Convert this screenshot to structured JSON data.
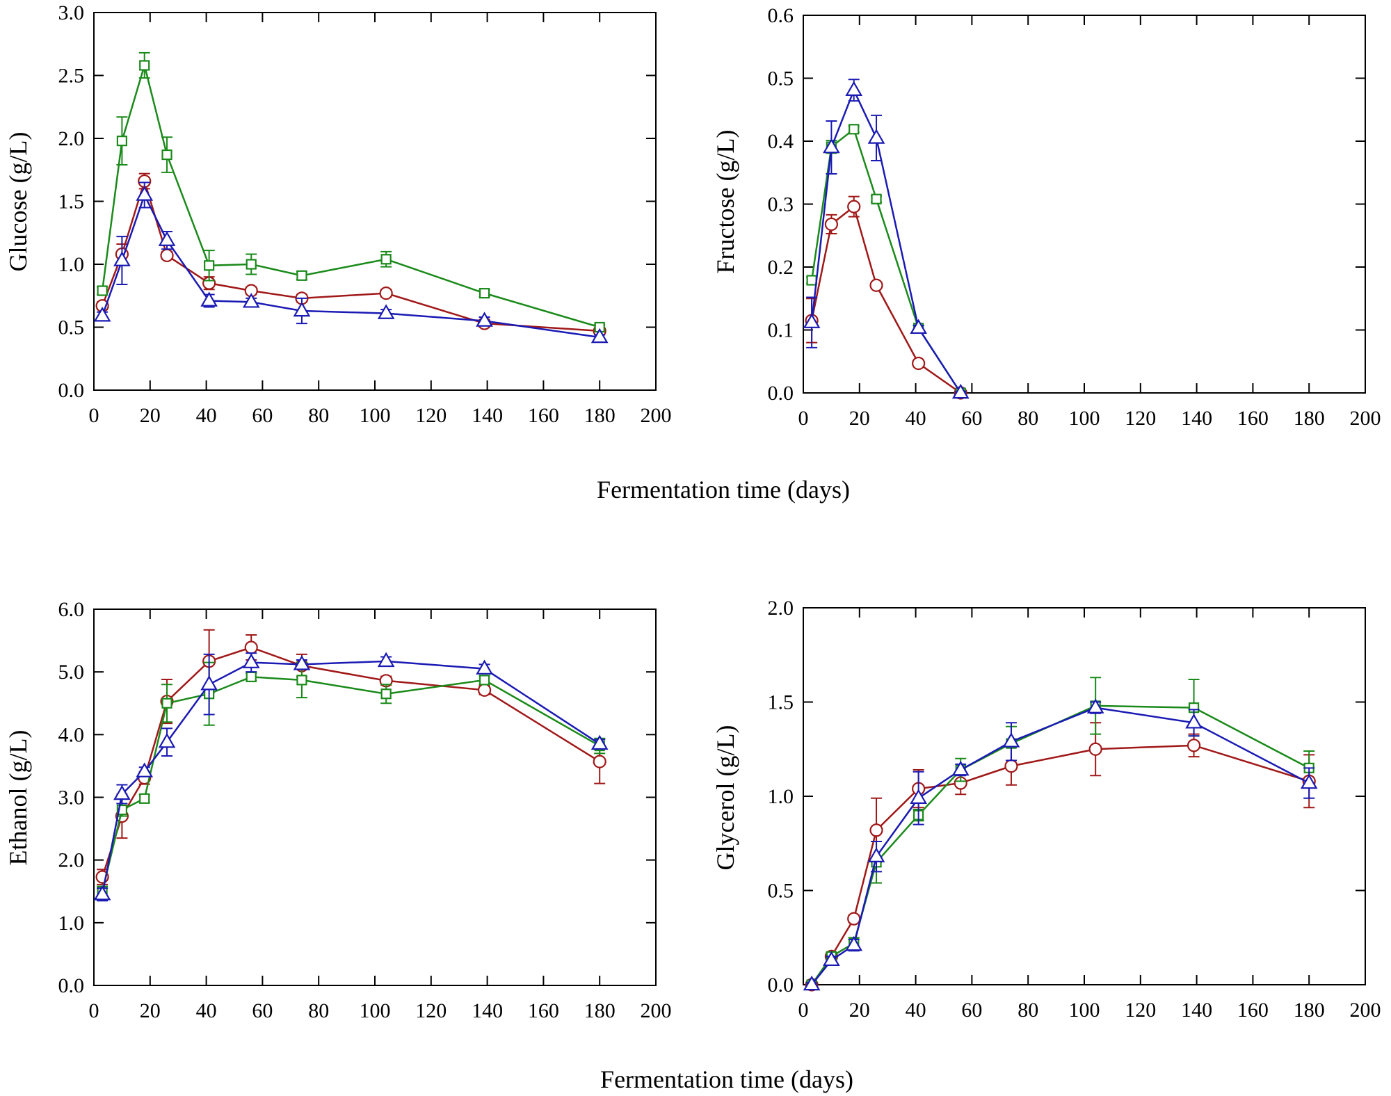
{
  "figure": {
    "shared_xlabel": "Fermentation time (days)"
  },
  "series_styles": [
    {
      "marker": "circle",
      "color": "#a01818"
    },
    {
      "marker": "square",
      "color": "#1a8a1a"
    },
    {
      "marker": "triangle",
      "color": "#1a1ab4"
    }
  ],
  "chart_data": [
    {
      "type": "line",
      "ylabel": "Glucose  (g/L)",
      "xlabel": "Fermentation time (days)",
      "xlim": [
        0,
        200
      ],
      "ylim": [
        0,
        3.0
      ],
      "xticks": [
        0,
        20,
        40,
        60,
        80,
        100,
        120,
        140,
        160,
        180,
        200
      ],
      "yticks": [
        0,
        0.5,
        1.0,
        1.5,
        2.0,
        2.5,
        3.0
      ],
      "xtick_labels": [
        "0",
        "20",
        "40",
        "60",
        "80",
        "100",
        "120",
        "140",
        "160",
        "180",
        "200"
      ],
      "ytick_labels": [
        "0.0",
        "0.5",
        "1.0",
        "1.5",
        "2.0",
        "2.5",
        "3.0"
      ],
      "series": [
        {
          "name": "circle",
          "x": [
            3,
            10,
            18,
            26,
            41,
            56,
            74,
            104,
            139,
            180
          ],
          "values": [
            0.67,
            1.08,
            1.66,
            1.07,
            0.85,
            0.79,
            0.73,
            0.77,
            0.53,
            0.47
          ],
          "err": [
            0.03,
            0.08,
            0.06,
            0.03,
            0.05,
            0.03,
            0.03,
            0.03,
            0.03,
            0.02
          ]
        },
        {
          "name": "square",
          "x": [
            3,
            10,
            18,
            26,
            41,
            56,
            74,
            104,
            139,
            180
          ],
          "values": [
            0.79,
            1.98,
            2.58,
            1.87,
            0.99,
            1.0,
            0.91,
            1.04,
            0.77,
            0.5
          ],
          "err": [
            0.03,
            0.19,
            0.1,
            0.14,
            0.12,
            0.08,
            0.03,
            0.06,
            0.03,
            0.02
          ]
        },
        {
          "name": "triangle",
          "x": [
            3,
            10,
            18,
            26,
            41,
            56,
            74,
            104,
            139,
            180
          ],
          "values": [
            0.59,
            1.03,
            1.55,
            1.19,
            0.71,
            0.7,
            0.63,
            0.61,
            0.55,
            0.42
          ],
          "err": [
            0.03,
            0.19,
            0.1,
            0.07,
            0.05,
            0.03,
            0.1,
            0.03,
            0.03,
            0.02
          ]
        }
      ]
    },
    {
      "type": "line",
      "ylabel": "Fructose  (g/L)",
      "xlabel": "Fermentation time (days)",
      "xlim": [
        0,
        200
      ],
      "ylim": [
        0,
        0.6
      ],
      "xticks": [
        0,
        20,
        40,
        60,
        80,
        100,
        120,
        140,
        160,
        180,
        200
      ],
      "yticks": [
        0,
        0.1,
        0.2,
        0.3,
        0.4,
        0.5,
        0.6
      ],
      "xtick_labels": [
        "0",
        "20",
        "40",
        "60",
        "80",
        "100",
        "120",
        "140",
        "160",
        "180",
        "200"
      ],
      "ytick_labels": [
        "0.0",
        "0.1",
        "0.2",
        "0.3",
        "0.4",
        "0.5",
        "0.6"
      ],
      "series": [
        {
          "name": "circle",
          "x": [
            3,
            10,
            18,
            26,
            41,
            56
          ],
          "values": [
            0.115,
            0.268,
            0.296,
            0.171,
            0.047,
            0.0
          ],
          "err": [
            0.035,
            0.015,
            0.016,
            0.005,
            0.003,
            0.002
          ]
        },
        {
          "name": "square",
          "x": [
            3,
            10,
            18,
            26,
            41,
            56
          ],
          "values": [
            0.179,
            0.391,
            0.419,
            0.308,
            0.103,
            0.0
          ],
          "err": [
            0.005,
            0.01,
            0.005,
            0.005,
            0.004,
            0.002
          ]
        },
        {
          "name": "triangle",
          "x": [
            3,
            10,
            18,
            26,
            41,
            56
          ],
          "values": [
            0.112,
            0.39,
            0.481,
            0.405,
            0.103,
            0.0
          ],
          "err": [
            0.04,
            0.042,
            0.017,
            0.036,
            0.004,
            0.002
          ]
        }
      ]
    },
    {
      "type": "line",
      "ylabel": "Ethanol (g/L)",
      "xlabel": "Fermentation time (days)",
      "xlim": [
        0,
        200
      ],
      "ylim": [
        0,
        6.0
      ],
      "xticks": [
        0,
        20,
        40,
        60,
        80,
        100,
        120,
        140,
        160,
        180,
        200
      ],
      "yticks": [
        0,
        1.0,
        2.0,
        3.0,
        4.0,
        5.0,
        6.0
      ],
      "xtick_labels": [
        "0",
        "20",
        "40",
        "60",
        "80",
        "100",
        "120",
        "140",
        "160",
        "180",
        "200"
      ],
      "ytick_labels": [
        "0.0",
        "1.0",
        "2.0",
        "3.0",
        "4.0",
        "5.0",
        "6.0"
      ],
      "series": [
        {
          "name": "circle",
          "x": [
            3,
            10,
            18,
            26,
            41,
            56,
            74,
            104,
            139,
            180
          ],
          "values": [
            1.73,
            2.7,
            3.31,
            4.53,
            5.17,
            5.39,
            5.1,
            4.86,
            4.71,
            3.57
          ],
          "err": [
            0.12,
            0.35,
            0.1,
            0.35,
            0.5,
            0.2,
            0.18,
            0.07,
            0.07,
            0.35
          ]
        },
        {
          "name": "square",
          "x": [
            3,
            10,
            18,
            26,
            41,
            56,
            74,
            104,
            139,
            180
          ],
          "values": [
            1.5,
            2.8,
            2.98,
            4.5,
            4.65,
            4.92,
            4.87,
            4.65,
            4.87,
            3.82
          ],
          "err": [
            0.08,
            0.1,
            0.06,
            0.3,
            0.5,
            0.06,
            0.28,
            0.15,
            0.07,
            0.12
          ]
        },
        {
          "name": "triangle",
          "x": [
            3,
            10,
            18,
            26,
            41,
            56,
            74,
            104,
            139,
            180
          ],
          "values": [
            1.45,
            3.05,
            3.41,
            3.88,
            4.8,
            5.15,
            5.12,
            5.17,
            5.05,
            3.85
          ],
          "err": [
            0.1,
            0.15,
            0.07,
            0.22,
            0.48,
            0.15,
            0.07,
            0.07,
            0.07,
            0.07
          ]
        }
      ]
    },
    {
      "type": "line",
      "ylabel": "Glycerol (g/L)",
      "xlabel": "Fermentation time (days)",
      "xlim": [
        0,
        200
      ],
      "ylim": [
        0,
        2.0
      ],
      "xticks": [
        0,
        20,
        40,
        60,
        80,
        100,
        120,
        140,
        160,
        180,
        200
      ],
      "yticks": [
        0,
        0.5,
        1.0,
        1.5,
        2.0
      ],
      "xtick_labels": [
        "0",
        "20",
        "40",
        "60",
        "80",
        "100",
        "120",
        "140",
        "160",
        "180",
        "200"
      ],
      "ytick_labels": [
        "0.0",
        "0.5",
        "1.0",
        "1.5",
        "2.0"
      ],
      "series": [
        {
          "name": "circle",
          "x": [
            3,
            10,
            18,
            26,
            41,
            56,
            74,
            104,
            139,
            180
          ],
          "values": [
            0.0,
            0.15,
            0.35,
            0.82,
            1.04,
            1.07,
            1.16,
            1.25,
            1.27,
            1.08
          ],
          "err": [
            0.01,
            0.02,
            0.02,
            0.17,
            0.1,
            0.06,
            0.1,
            0.14,
            0.06,
            0.14
          ]
        },
        {
          "name": "square",
          "x": [
            3,
            10,
            18,
            26,
            41,
            56,
            74,
            104,
            139,
            180
          ],
          "values": [
            0.0,
            0.15,
            0.22,
            0.65,
            0.9,
            1.14,
            1.28,
            1.48,
            1.47,
            1.15
          ],
          "err": [
            0.01,
            0.02,
            0.03,
            0.11,
            0.03,
            0.06,
            0.09,
            0.15,
            0.15,
            0.09
          ]
        },
        {
          "name": "triangle",
          "x": [
            3,
            10,
            18,
            26,
            41,
            56,
            74,
            104,
            139,
            180
          ],
          "values": [
            0.0,
            0.13,
            0.21,
            0.68,
            0.99,
            1.14,
            1.29,
            1.47,
            1.39,
            1.07
          ],
          "err": [
            0.01,
            0.02,
            0.03,
            0.08,
            0.14,
            0.03,
            0.1,
            0.03,
            0.07,
            0.08
          ]
        }
      ]
    }
  ]
}
